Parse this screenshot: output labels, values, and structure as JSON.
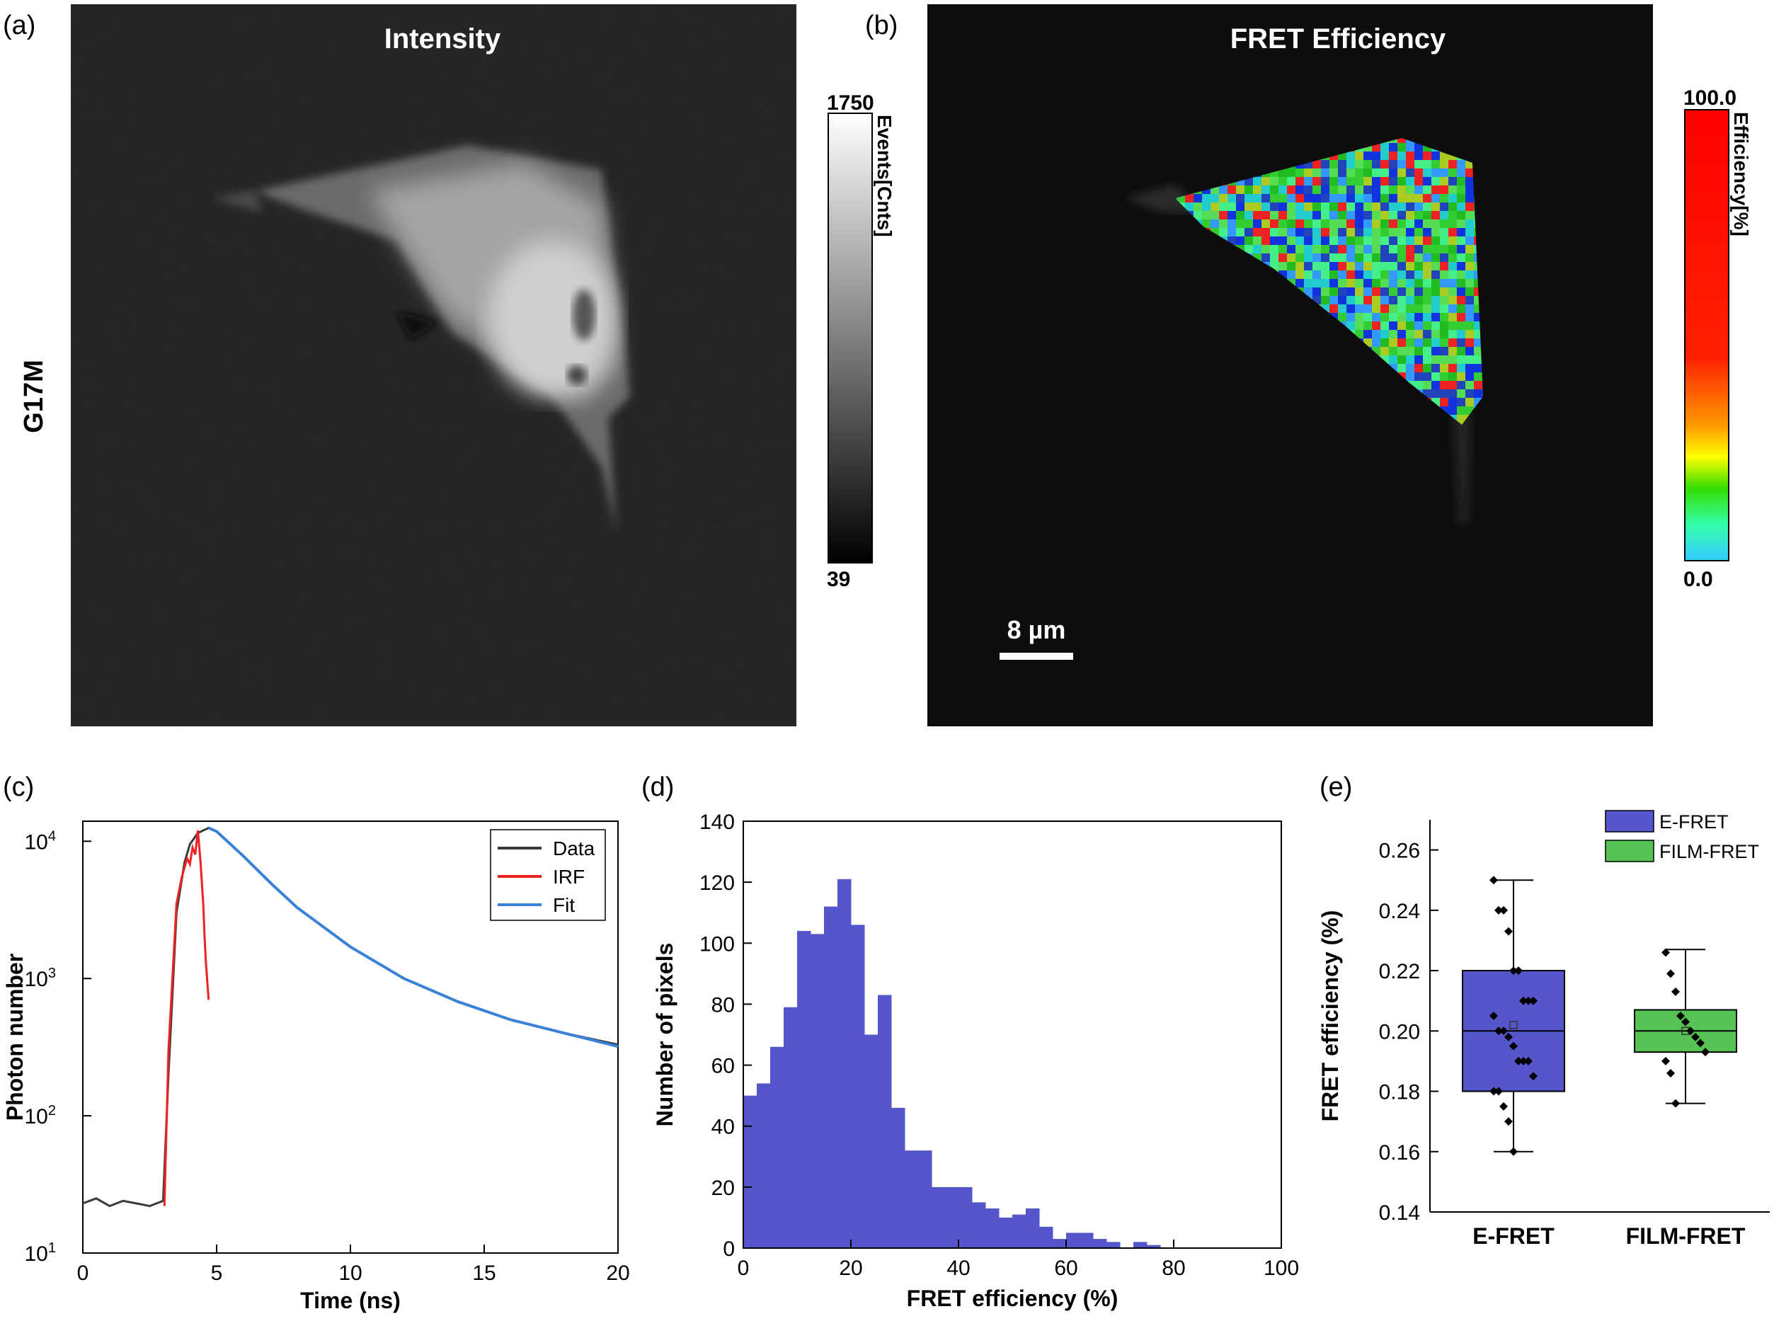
{
  "panels": {
    "a": {
      "label": "(a)",
      "title": "Intensity",
      "row_label": "G17M",
      "colorbar": {
        "max": "1750",
        "min": "39",
        "label": "Events[Cnts]"
      }
    },
    "b": {
      "label": "(b)",
      "title": "FRET Efficiency",
      "colorbar": {
        "max": "100.0",
        "min": "0.0",
        "label": "Efficiency[%]"
      },
      "scalebar": "8 µm"
    },
    "c": {
      "label": "(c)"
    },
    "d": {
      "label": "(d)"
    },
    "e": {
      "label": "(e)"
    }
  },
  "colors": {
    "data": "#3a3a3a",
    "irf": "#ee2222",
    "fit": "#3a82d8",
    "hist": "#5555cc",
    "efret": "#5656cc",
    "filmfret": "#55c455"
  },
  "chart_data": [
    {
      "id": "c",
      "type": "line",
      "xlabel": "Time (ns)",
      "ylabel": "Photon number",
      "xlim": [
        0,
        20
      ],
      "ylim": [
        10,
        14000
      ],
      "yscale": "log",
      "xticks": [
        "0",
        "5",
        "10",
        "15",
        "20"
      ],
      "yticks": [
        {
          "v": 10,
          "base": "10",
          "exp": "1"
        },
        {
          "v": 100,
          "base": "10",
          "exp": "2"
        },
        {
          "v": 1000,
          "base": "10",
          "exp": "3"
        },
        {
          "v": 10000,
          "base": "10",
          "exp": "4"
        }
      ],
      "legend_position": "top-right",
      "series": [
        {
          "name": "Data",
          "x": [
            0,
            0.5,
            1,
            1.5,
            2,
            2.5,
            3.0,
            3.2,
            3.5,
            3.8,
            4.0,
            4.3,
            4.7,
            5,
            6,
            7,
            8,
            10,
            12,
            14,
            16,
            18,
            20
          ],
          "y": [
            23,
            25,
            22,
            24,
            23,
            22,
            24,
            200,
            3000,
            7000,
            9500,
            11500,
            12500,
            11800,
            7800,
            5000,
            3300,
            1700,
            1000,
            680,
            500,
            400,
            330
          ]
        },
        {
          "name": "IRF",
          "x": [
            3.05,
            3.2,
            3.5,
            3.7,
            3.9,
            4.0,
            4.1,
            4.2,
            4.3,
            4.4,
            4.5,
            4.55,
            4.6,
            4.7
          ],
          "y": [
            22,
            300,
            3500,
            5500,
            7500,
            6800,
            9000,
            8000,
            12000,
            7000,
            3500,
            2000,
            1300,
            700
          ]
        },
        {
          "name": "Fit",
          "x": [
            4.7,
            5,
            6,
            7,
            8,
            10,
            12,
            14,
            16,
            18,
            20
          ],
          "y": [
            12500,
            11800,
            7800,
            5000,
            3300,
            1700,
            1000,
            680,
            500,
            400,
            320
          ]
        }
      ]
    },
    {
      "id": "d",
      "type": "bar",
      "xlabel": "FRET efficiency (%)",
      "ylabel": "Number of pixels",
      "xlim": [
        0,
        100
      ],
      "ylim": [
        0,
        140
      ],
      "xticks": [
        "0",
        "20",
        "40",
        "60",
        "80",
        "100"
      ],
      "yticks": [
        "0",
        "20",
        "40",
        "60",
        "80",
        "100",
        "120",
        "140"
      ],
      "bin_width": 2.5,
      "bin_start": 0,
      "values": [
        50,
        54,
        66,
        79,
        104,
        103,
        112,
        121,
        106,
        70,
        83,
        46,
        32,
        32,
        20,
        20,
        20,
        15,
        13,
        10,
        11,
        13,
        7,
        3,
        5,
        5,
        3,
        2,
        0,
        2,
        1,
        0,
        0,
        0,
        0,
        0,
        0,
        0,
        0,
        0
      ]
    },
    {
      "id": "e",
      "type": "box",
      "ylabel": "FRET efficiency (%)",
      "ylim": [
        0.14,
        0.27
      ],
      "yticks": [
        "0.14",
        "0.16",
        "0.18",
        "0.20",
        "0.22",
        "0.24",
        "0.26"
      ],
      "categories": [
        "E-FRET",
        "FILM-FRET"
      ],
      "legend_position": "top-right",
      "boxes": [
        {
          "name": "E-FRET",
          "min": 0.16,
          "q1": 0.18,
          "median": 0.2,
          "q3": 0.22,
          "max": 0.25,
          "mean": 0.202,
          "points": [
            0.25,
            0.24,
            0.24,
            0.233,
            0.22,
            0.22,
            0.21,
            0.21,
            0.21,
            0.205,
            0.2,
            0.2,
            0.198,
            0.195,
            0.19,
            0.19,
            0.19,
            0.185,
            0.18,
            0.18,
            0.175,
            0.17,
            0.16
          ]
        },
        {
          "name": "FILM-FRET",
          "min": 0.176,
          "q1": 0.193,
          "median": 0.2,
          "q3": 0.207,
          "max": 0.227,
          "mean": 0.2,
          "points": [
            0.226,
            0.219,
            0.213,
            0.205,
            0.203,
            0.2,
            0.198,
            0.196,
            0.193,
            0.19,
            0.186,
            0.176
          ]
        }
      ]
    }
  ]
}
